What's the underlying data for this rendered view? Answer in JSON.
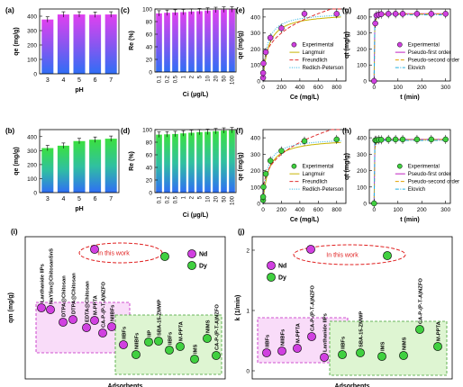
{
  "chart_data": [
    {
      "panel": "(a)",
      "type": "bar",
      "categories": [
        "3",
        "4",
        "5",
        "6",
        "7"
      ],
      "values": [
        377,
        412,
        412,
        410,
        412
      ],
      "ylabel": "qe (mg/g)",
      "xlabel": "pH",
      "ylim": [
        0,
        450
      ],
      "yticks": [
        "0",
        "100",
        "200",
        "300",
        "400"
      ],
      "fill": "purple-blue gradient"
    },
    {
      "panel": "(b)",
      "type": "bar",
      "categories": [
        "3",
        "4",
        "5",
        "6",
        "7"
      ],
      "values": [
        318,
        335,
        368,
        378,
        385
      ],
      "ylabel": "qe (mg/g)",
      "xlabel": "pH",
      "ylim": [
        0,
        450
      ],
      "yticks": [
        "0",
        "100",
        "200",
        "300",
        "400"
      ],
      "fill": "green-blue gradient"
    },
    {
      "panel": "(c)",
      "type": "bar",
      "categories": [
        "0.1",
        "0.2",
        "0.5",
        "1",
        "2",
        "5",
        "10",
        "20",
        "50",
        "100"
      ],
      "values": [
        93,
        94,
        94.5,
        95,
        96,
        96.5,
        97.5,
        98.5,
        99,
        99.2
      ],
      "ylabel": "Re (%)",
      "xlabel": "Ci (μg/L)",
      "ylim": [
        0,
        100
      ],
      "yticks": [
        "0",
        "20",
        "40",
        "60",
        "80",
        "100"
      ],
      "fill": "purple-blue gradient"
    },
    {
      "panel": "(d)",
      "type": "bar",
      "categories": [
        "0.1",
        "0.2",
        "0.5",
        "1",
        "2",
        "5",
        "10",
        "20",
        "50",
        "100"
      ],
      "values": [
        92,
        92.5,
        93,
        94,
        95,
        96,
        96.5,
        97.5,
        98.5,
        99
      ],
      "ylabel": "Re (%)",
      "xlabel": "Ci (μg/L)",
      "ylim": [
        0,
        100
      ],
      "yticks": [
        "0",
        "20",
        "40",
        "60",
        "80",
        "100"
      ],
      "fill": "green-blue gradient"
    },
    {
      "panel": "(e)",
      "type": "scatter",
      "xlabel": "Ce (mg/L)",
      "ylabel": "qe (mg/g)",
      "xlim": [
        0,
        900
      ],
      "ylim": [
        0,
        450
      ],
      "xticks": [
        "0",
        "200",
        "400",
        "600",
        "800"
      ],
      "yticks": [
        "0",
        "100",
        "200",
        "300",
        "400"
      ],
      "series": [
        {
          "name": "Experimental",
          "x": [
            0.5,
            1,
            5,
            30,
            80,
            200,
            450,
            800
          ],
          "y": [
            20,
            50,
            110,
            180,
            270,
            330,
            420,
            420
          ]
        },
        {
          "name": "Langmuir",
          "style": "solid",
          "color": "#c8b400"
        },
        {
          "name": "Freundlich",
          "style": "dash",
          "color": "#e03030"
        },
        {
          "name": "Redlich-Peterson",
          "style": "dot",
          "color": "#20b0e0"
        }
      ]
    },
    {
      "panel": "(f)",
      "type": "scatter",
      "xlabel": "Ce (mg/L)",
      "ylabel": "qe (mg/g)",
      "xlim": [
        0,
        900
      ],
      "ylim": [
        0,
        450
      ],
      "xticks": [
        "0",
        "200",
        "400",
        "600",
        "800"
      ],
      "yticks": [
        "0",
        "100",
        "200",
        "300",
        "400"
      ],
      "series": [
        {
          "name": "Experimental",
          "x": [
            0.5,
            1,
            5,
            30,
            80,
            200,
            450,
            800
          ],
          "y": [
            20,
            40,
            100,
            180,
            260,
            320,
            380,
            390
          ]
        },
        {
          "name": "Langmuir",
          "style": "solid",
          "color": "#c8b400"
        },
        {
          "name": "Freundlich",
          "style": "dash",
          "color": "#e03030"
        },
        {
          "name": "Redlich-Peterson",
          "style": "dot",
          "color": "#20b0e0"
        }
      ]
    },
    {
      "panel": "(g)",
      "type": "scatter",
      "xlabel": "t (min)",
      "ylabel": "qt (mg/g)",
      "xlim": [
        -20,
        320
      ],
      "ylim": [
        0,
        450
      ],
      "xticks": [
        "0",
        "100",
        "200",
        "300"
      ],
      "yticks": [
        "0",
        "100",
        "200",
        "300",
        "400"
      ],
      "series": [
        {
          "name": "Experimental",
          "x": [
            0,
            5,
            10,
            20,
            30,
            60,
            90,
            120,
            180,
            240,
            300
          ],
          "y": [
            0,
            360,
            410,
            415,
            418,
            420,
            420,
            420,
            420,
            420,
            420
          ]
        },
        {
          "name": "Pseudo-first order",
          "style": "solid",
          "color": "#c020c0"
        },
        {
          "name": "Pseudo-second order",
          "style": "dash",
          "color": "#e0a000"
        },
        {
          "name": "Elovich",
          "style": "dashdot",
          "color": "#20b0e0"
        }
      ]
    },
    {
      "panel": "(h)",
      "type": "scatter",
      "xlabel": "t (min)",
      "ylabel": "qt (mg/g)",
      "xlim": [
        -20,
        320
      ],
      "ylim": [
        0,
        450
      ],
      "xticks": [
        "0",
        "100",
        "200",
        "300"
      ],
      "yticks": [
        "0",
        "100",
        "200",
        "300",
        "400"
      ],
      "series": [
        {
          "name": "Experimental",
          "x": [
            0,
            5,
            10,
            20,
            30,
            60,
            90,
            120,
            180,
            240,
            300
          ],
          "y": [
            0,
            385,
            385,
            388,
            388,
            390,
            390,
            390,
            390,
            390,
            390
          ]
        },
        {
          "name": "Pseudo-first order",
          "style": "solid",
          "color": "#c020c0"
        },
        {
          "name": "Pseudo-second order",
          "style": "dash",
          "color": "#e0a000"
        },
        {
          "name": "Elovich",
          "style": "dashdot",
          "color": "#20b0e0"
        }
      ]
    },
    {
      "panel": "(i)",
      "type": "scatter",
      "xlabel": "Adsorbents",
      "ylabel": "qm (mg/g)",
      "legend": [
        "Nd",
        "Dy"
      ],
      "annotation": "In this work",
      "Nd_labels": [
        "Lanthanide IIPs",
        "NaYSm@ChitosanSnS",
        "DTPA@Chitosan",
        "DTPA@Chitosan",
        "EDTA@Chitosan",
        "M-PPTA",
        "CA-P-(P-T-A)NZFO",
        "NIIBFs",
        "IIBFs"
      ],
      "Dy_labels": [
        "NIIBFs",
        "IIP",
        "SBA-15-ZMWP",
        "IIBFs",
        "M-PPTA",
        "IMS",
        "NIMS",
        "CA-P-(P-T-A)NZFO"
      ]
    },
    {
      "panel": "(j)",
      "type": "scatter",
      "xlabel": "Adsorbents",
      "ylabel": "k (1/min)",
      "legend": [
        "Nd",
        "Dy"
      ],
      "annotation": "In this work",
      "yticks": [
        "0",
        "1",
        "2"
      ],
      "Nd_labels": [
        "IIBFs",
        "NIIBFs",
        "M-PPTA",
        "CA-P-(P-T-A)NZFO",
        "Lanthanide IIPs"
      ],
      "Dy_labels": [
        "IIBFs",
        "SBA-15-ZMWP",
        "IMS",
        "NIMS",
        "CA-P-(P-T-A)NZFO",
        "M-PPTA"
      ]
    }
  ]
}
